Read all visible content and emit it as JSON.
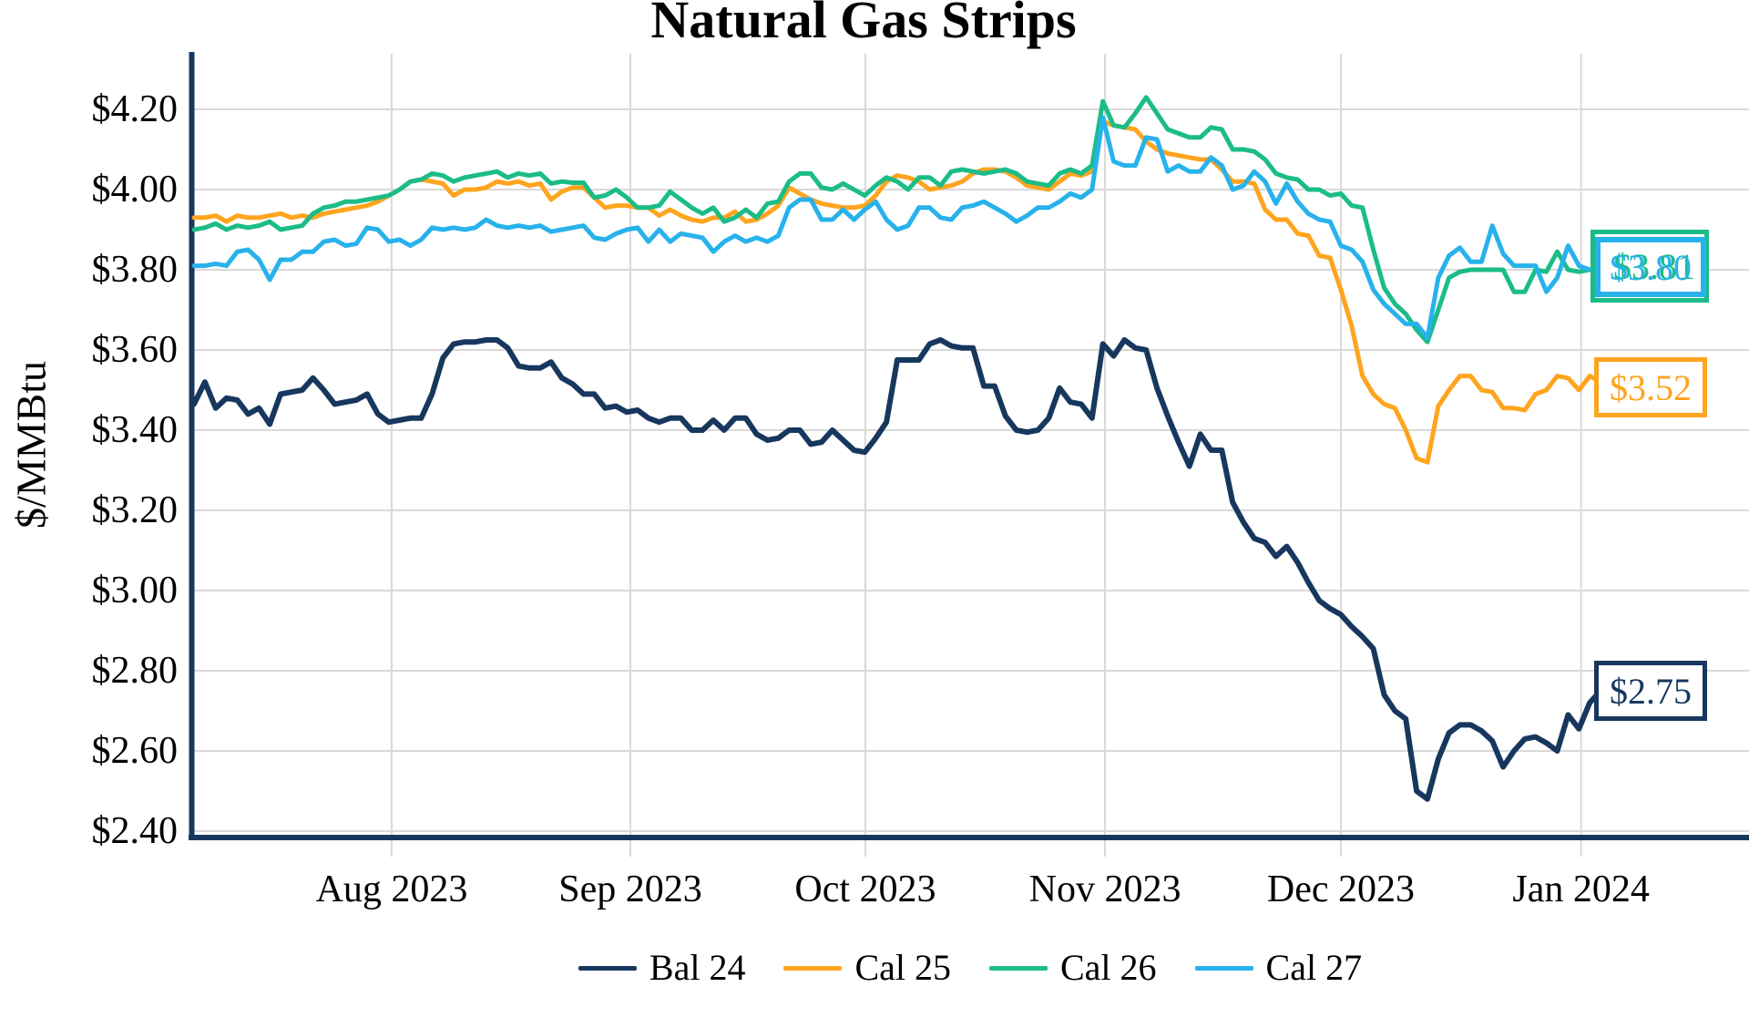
{
  "title": "Natural Gas Strips",
  "y_axis_title": "$/MMBtu",
  "colors": {
    "axis": "#17375E",
    "grid": "#D9D9D9",
    "background": "#FFFFFF"
  },
  "chart_data": {
    "type": "line",
    "title": "Natural Gas Strips",
    "xlabel": "",
    "ylabel": "$/MMBtu",
    "ylim": [
      2.4,
      4.34
    ],
    "grid": true,
    "legend_position": "bottom",
    "y_ticks": [
      {
        "value": 4.2,
        "label": "$4.20"
      },
      {
        "value": 4.0,
        "label": "$4.00"
      },
      {
        "value": 3.8,
        "label": "$3.80"
      },
      {
        "value": 3.6,
        "label": "$3.60"
      },
      {
        "value": 3.4,
        "label": "$3.40"
      },
      {
        "value": 3.2,
        "label": "$3.20"
      },
      {
        "value": 3.0,
        "label": "$3.00"
      },
      {
        "value": 2.8,
        "label": "$2.80"
      },
      {
        "value": 2.6,
        "label": "$2.60"
      },
      {
        "value": 2.4,
        "label": "$2.40"
      }
    ],
    "x_ticks": [
      {
        "label": "Aug 2023",
        "pos": 18.27
      },
      {
        "label": "Sep 2023",
        "pos": 40.33
      },
      {
        "label": "Oct 2023",
        "pos": 62.05
      },
      {
        "label": "Nov 2023",
        "pos": 84.2
      },
      {
        "label": "Dec 2023",
        "pos": 106.0
      },
      {
        "label": "Jan 2024",
        "pos": 128.2
      }
    ],
    "series": [
      {
        "name": "Bal 24",
        "color": "#17375E",
        "end_label": "$2.75",
        "values": [
          3.465,
          3.52,
          3.455,
          3.48,
          3.475,
          3.44,
          3.455,
          3.415,
          3.49,
          3.495,
          3.5,
          3.53,
          3.5,
          3.465,
          3.47,
          3.475,
          3.49,
          3.44,
          3.42,
          3.425,
          3.43,
          3.43,
          3.49,
          3.58,
          3.615,
          3.62,
          3.62,
          3.625,
          3.625,
          3.605,
          3.56,
          3.555,
          3.555,
          3.57,
          3.53,
          3.515,
          3.49,
          3.49,
          3.455,
          3.46,
          3.445,
          3.45,
          3.43,
          3.42,
          3.43,
          3.43,
          3.4,
          3.4,
          3.425,
          3.4,
          3.43,
          3.43,
          3.39,
          3.375,
          3.38,
          3.4,
          3.4,
          3.365,
          3.37,
          3.4,
          3.375,
          3.35,
          3.345,
          3.38,
          3.42,
          3.575,
          3.575,
          3.575,
          3.615,
          3.625,
          3.61,
          3.605,
          3.605,
          3.51,
          3.51,
          3.435,
          3.4,
          3.395,
          3.4,
          3.43,
          3.505,
          3.47,
          3.465,
          3.43,
          3.615,
          3.585,
          3.625,
          3.605,
          3.6,
          3.505,
          3.435,
          3.37,
          3.31,
          3.39,
          3.35,
          3.35,
          3.22,
          3.17,
          3.13,
          3.12,
          3.085,
          3.11,
          3.07,
          3.02,
          2.975,
          2.955,
          2.94,
          2.91,
          2.885,
          2.855,
          2.74,
          2.7,
          2.68,
          2.5,
          2.48,
          2.58,
          2.645,
          2.665,
          2.665,
          2.65,
          2.625,
          2.56,
          2.6,
          2.63,
          2.635,
          2.62,
          2.6,
          2.69,
          2.655,
          2.72,
          2.75
        ]
      },
      {
        "name": "Cal 25",
        "color": "#FFA41E",
        "end_label": "$3.52",
        "values": [
          3.93,
          3.93,
          3.935,
          3.92,
          3.935,
          3.93,
          3.93,
          3.935,
          3.94,
          3.93,
          3.935,
          3.93,
          3.94,
          3.945,
          3.95,
          3.955,
          3.96,
          3.97,
          3.985,
          4.0,
          4.02,
          4.025,
          4.02,
          4.015,
          3.985,
          4.0,
          4.0,
          4.005,
          4.02,
          4.015,
          4.02,
          4.01,
          4.015,
          3.975,
          3.995,
          4.005,
          4.005,
          3.98,
          3.955,
          3.96,
          3.96,
          3.955,
          3.955,
          3.935,
          3.95,
          3.935,
          3.925,
          3.92,
          3.93,
          3.93,
          3.945,
          3.92,
          3.925,
          3.94,
          3.96,
          4.005,
          3.99,
          3.975,
          3.965,
          3.96,
          3.955,
          3.955,
          3.96,
          3.985,
          4.02,
          4.035,
          4.03,
          4.02,
          4.0,
          4.005,
          4.01,
          4.02,
          4.04,
          4.05,
          4.05,
          4.045,
          4.03,
          4.01,
          4.005,
          4.0,
          4.02,
          4.04,
          4.035,
          4.045,
          4.17,
          4.16,
          4.155,
          4.15,
          4.12,
          4.1,
          4.09,
          4.085,
          4.08,
          4.075,
          4.075,
          4.05,
          4.02,
          4.02,
          4.015,
          3.95,
          3.925,
          3.925,
          3.89,
          3.885,
          3.835,
          3.83,
          3.75,
          3.66,
          3.535,
          3.49,
          3.465,
          3.455,
          3.4,
          3.33,
          3.32,
          3.46,
          3.5,
          3.535,
          3.535,
          3.5,
          3.495,
          3.455,
          3.455,
          3.45,
          3.49,
          3.5,
          3.535,
          3.53,
          3.5,
          3.535,
          3.52
        ]
      },
      {
        "name": "Cal 26",
        "color": "#1BBC87",
        "end_label": "$3.81",
        "values": [
          3.9,
          3.905,
          3.915,
          3.9,
          3.91,
          3.905,
          3.91,
          3.92,
          3.9,
          3.905,
          3.91,
          3.94,
          3.955,
          3.96,
          3.97,
          3.97,
          3.975,
          3.98,
          3.985,
          4.0,
          4.02,
          4.025,
          4.04,
          4.035,
          4.02,
          4.03,
          4.035,
          4.04,
          4.045,
          4.03,
          4.04,
          4.035,
          4.04,
          4.015,
          4.02,
          4.017,
          4.017,
          3.98,
          3.985,
          4.0,
          3.98,
          3.955,
          3.955,
          3.96,
          3.995,
          3.975,
          3.955,
          3.94,
          3.955,
          3.92,
          3.93,
          3.95,
          3.93,
          3.965,
          3.97,
          4.02,
          4.04,
          4.04,
          4.005,
          4.0,
          4.015,
          4.0,
          3.985,
          4.01,
          4.03,
          4.02,
          4.0,
          4.03,
          4.03,
          4.01,
          4.045,
          4.05,
          4.045,
          4.04,
          4.045,
          4.05,
          4.04,
          4.02,
          4.015,
          4.01,
          4.04,
          4.05,
          4.04,
          4.06,
          4.22,
          4.16,
          4.155,
          4.19,
          4.23,
          4.19,
          4.15,
          4.14,
          4.13,
          4.13,
          4.155,
          4.15,
          4.1,
          4.1,
          4.095,
          4.075,
          4.04,
          4.03,
          4.025,
          4.0,
          4.0,
          3.985,
          3.99,
          3.96,
          3.955,
          3.85,
          3.755,
          3.715,
          3.69,
          3.65,
          3.62,
          3.7,
          3.78,
          3.795,
          3.8,
          3.8,
          3.8,
          3.8,
          3.745,
          3.745,
          3.8,
          3.795,
          3.845,
          3.8,
          3.795,
          3.8,
          3.81
        ]
      },
      {
        "name": "Cal 27",
        "color": "#28B2EB",
        "end_label": "$3.80",
        "values": [
          3.81,
          3.81,
          3.815,
          3.81,
          3.845,
          3.85,
          3.825,
          3.775,
          3.825,
          3.825,
          3.845,
          3.845,
          3.87,
          3.875,
          3.86,
          3.865,
          3.905,
          3.9,
          3.87,
          3.875,
          3.86,
          3.875,
          3.905,
          3.9,
          3.905,
          3.9,
          3.905,
          3.925,
          3.91,
          3.905,
          3.91,
          3.905,
          3.91,
          3.895,
          3.9,
          3.905,
          3.91,
          3.88,
          3.875,
          3.89,
          3.9,
          3.905,
          3.87,
          3.9,
          3.87,
          3.89,
          3.885,
          3.88,
          3.845,
          3.87,
          3.885,
          3.87,
          3.88,
          3.87,
          3.885,
          3.955,
          3.975,
          3.975,
          3.925,
          3.925,
          3.95,
          3.925,
          3.95,
          3.97,
          3.925,
          3.9,
          3.91,
          3.955,
          3.955,
          3.93,
          3.925,
          3.955,
          3.96,
          3.97,
          3.955,
          3.94,
          3.92,
          3.935,
          3.955,
          3.955,
          3.97,
          3.99,
          3.98,
          4.0,
          4.18,
          4.07,
          4.06,
          4.06,
          4.13,
          4.125,
          4.045,
          4.06,
          4.045,
          4.045,
          4.08,
          4.06,
          4.0,
          4.01,
          4.045,
          4.02,
          3.965,
          4.015,
          3.97,
          3.94,
          3.925,
          3.92,
          3.86,
          3.85,
          3.82,
          3.75,
          3.715,
          3.69,
          3.665,
          3.665,
          3.63,
          3.78,
          3.835,
          3.855,
          3.82,
          3.82,
          3.91,
          3.84,
          3.81,
          3.81,
          3.81,
          3.745,
          3.78,
          3.86,
          3.81,
          3.8,
          3.8
        ]
      }
    ]
  }
}
